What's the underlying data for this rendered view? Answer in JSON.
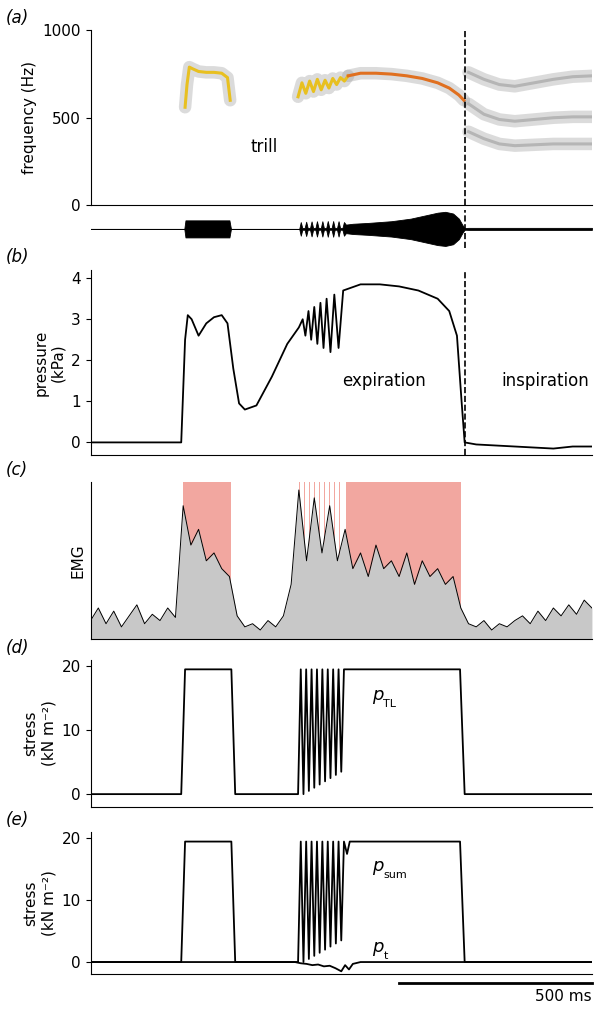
{
  "chart_data": [
    {
      "type": "line",
      "title": "(a)",
      "y_label": "frequency (Hz)",
      "xlim": [
        0,
        1300
      ],
      "xticks": [],
      "ylim": [
        0,
        1000
      ],
      "yticks": [
        0,
        500,
        1000
      ],
      "tick_labels": "y",
      "series": [
        {
          "type": "line",
          "color": "#e8c020",
          "x": [
            245,
            250,
            256,
            265,
            280,
            300,
            320,
            340,
            355,
            362
          ],
          "values": [
            560,
            690,
            790,
            780,
            765,
            760,
            760,
            755,
            730,
            600
          ]
        },
        {
          "type": "line",
          "color": "#e8c020",
          "x": [
            538,
            548,
            558,
            568,
            578,
            588,
            598,
            608,
            618,
            628,
            638,
            648,
            658,
            668
          ],
          "values": [
            620,
            700,
            640,
            710,
            650,
            720,
            660,
            715,
            670,
            725,
            690,
            730,
            710,
            740
          ]
        },
        {
          "type": "line",
          "color": "#e07020",
          "x": [
            668,
            700,
            740,
            780,
            820,
            860,
            900,
            930,
            955,
            968
          ],
          "values": [
            740,
            755,
            755,
            750,
            740,
            725,
            700,
            670,
            630,
            600
          ]
        },
        {
          "type": "line",
          "color": "#b5b5b5",
          "x": [
            980,
            1020,
            1060,
            1100,
            1150,
            1200,
            1250,
            1300
          ],
          "values": [
            760,
            720,
            690,
            680,
            700,
            720,
            735,
            740
          ]
        },
        {
          "type": "line",
          "color": "#b5b5b5",
          "x": [
            980,
            1020,
            1060,
            1100,
            1150,
            1200,
            1250,
            1300
          ],
          "values": [
            580,
            520,
            490,
            480,
            490,
            500,
            505,
            505
          ]
        },
        {
          "type": "line",
          "color": "#b5b5b5",
          "x": [
            980,
            1020,
            1060,
            1100,
            1150,
            1200,
            1250,
            1300
          ],
          "values": [
            420,
            380,
            350,
            340,
            345,
            350,
            350,
            350
          ]
        }
      ],
      "annotations": [
        {
          "text": "trill",
          "x": 450,
          "y": 330
        }
      ],
      "vline": 970
    },
    {
      "type": "area",
      "xlim": [
        0,
        1300
      ],
      "xticks": [],
      "ylim": [
        -1.1,
        1.1
      ],
      "yticks": [],
      "tick_labels": false,
      "series": [
        {
          "type": "envelope",
          "color": "#000000",
          "x": [
            0,
            243,
            246,
            360,
            364,
            541,
            545,
            549,
            555,
            559,
            563,
            569,
            573,
            577,
            583,
            587,
            591,
            597,
            601,
            605,
            611,
            615,
            619,
            625,
            629,
            633,
            639,
            643,
            647,
            653,
            657,
            662,
            680,
            720,
            780,
            830,
            870,
            900,
            920,
            940,
            955,
            965,
            970,
            980,
            1300
          ],
          "values": [
            0,
            0,
            0.5,
            0.5,
            0,
            0,
            0.4,
            0.05,
            0.05,
            0.42,
            0.05,
            0.05,
            0.44,
            0.05,
            0.05,
            0.45,
            0.05,
            0.05,
            0.45,
            0.05,
            0.05,
            0.46,
            0.05,
            0.05,
            0.46,
            0.05,
            0.05,
            0.45,
            0.05,
            0.05,
            0.4,
            0.25,
            0.3,
            0.35,
            0.45,
            0.6,
            0.8,
            0.95,
            1.0,
            0.9,
            0.6,
            0.2,
            0.05,
            0.06,
            0.06
          ]
        }
      ],
      "vline": 970
    },
    {
      "type": "line",
      "title": "(b)",
      "y_label": "pressure\n(kPa)",
      "xlim": [
        0,
        1300
      ],
      "xticks": [],
      "ylim": [
        -0.3,
        4.2
      ],
      "yticks": [
        0,
        1,
        2,
        3,
        4
      ],
      "tick_labels": "y",
      "series": [
        {
          "type": "line",
          "color": "#000000",
          "x": [
            0,
            235,
            245,
            252,
            262,
            280,
            300,
            320,
            340,
            355,
            370,
            385,
            400,
            430,
            470,
            510,
            540,
            550,
            557,
            565,
            572,
            580,
            588,
            596,
            604,
            612,
            622,
            632,
            643,
            655,
            670,
            700,
            750,
            800,
            850,
            900,
            930,
            950,
            962,
            970,
            1000,
            1100,
            1200,
            1250,
            1300
          ],
          "values": [
            0,
            0,
            2.5,
            3.1,
            3.0,
            2.6,
            2.9,
            3.05,
            3.1,
            2.9,
            1.8,
            0.95,
            0.8,
            0.9,
            1.6,
            2.4,
            2.8,
            3.0,
            2.6,
            3.2,
            2.5,
            3.3,
            2.4,
            3.4,
            2.3,
            3.5,
            2.2,
            3.6,
            2.3,
            3.7,
            3.75,
            3.85,
            3.85,
            3.8,
            3.7,
            3.5,
            3.2,
            2.6,
            1.0,
            0.0,
            -0.05,
            -0.1,
            -0.15,
            -0.1,
            -0.1
          ]
        }
      ],
      "annotations": [
        {
          "text": "expiration",
          "x": 760,
          "y": 1.5
        },
        {
          "text": "inspiration",
          "x": 1180,
          "y": 1.5
        }
      ],
      "vline": 970
    },
    {
      "type": "line",
      "title": "(c)",
      "y_label": "EMG",
      "xlim": [
        0,
        1300
      ],
      "xticks": [],
      "ylim": [
        0,
        1
      ],
      "yticks": [],
      "tick_labels": false,
      "series": [
        {
          "type": "span",
          "color": "#f2a7a0",
          "intervals": [
            [
              240,
              365
            ],
            [
              540,
              544
            ],
            [
              553,
              557
            ],
            [
              566,
              570
            ],
            [
              579,
              583
            ],
            [
              592,
              596
            ],
            [
              605,
              609
            ],
            [
              618,
              622
            ],
            [
              631,
              635
            ],
            [
              644,
              648
            ],
            [
              662,
              960
            ]
          ]
        },
        {
          "type": "area",
          "color": "#000000",
          "x": [
            0,
            20,
            40,
            60,
            80,
            100,
            120,
            140,
            160,
            180,
            200,
            220,
            240,
            260,
            280,
            300,
            320,
            340,
            360,
            380,
            400,
            420,
            440,
            460,
            480,
            500,
            520,
            540,
            560,
            580,
            600,
            620,
            640,
            660,
            680,
            700,
            720,
            740,
            760,
            780,
            800,
            820,
            840,
            860,
            880,
            900,
            920,
            940,
            960,
            980,
            1000,
            1020,
            1040,
            1060,
            1080,
            1100,
            1120,
            1140,
            1160,
            1180,
            1200,
            1220,
            1240,
            1260,
            1280,
            1300
          ],
          "values": [
            0.12,
            0.2,
            0.1,
            0.18,
            0.08,
            0.15,
            0.22,
            0.1,
            0.16,
            0.12,
            0.2,
            0.14,
            0.85,
            0.6,
            0.7,
            0.5,
            0.55,
            0.45,
            0.4,
            0.15,
            0.08,
            0.1,
            0.06,
            0.12,
            0.08,
            0.15,
            0.35,
            0.95,
            0.5,
            0.9,
            0.55,
            0.85,
            0.5,
            0.7,
            0.45,
            0.55,
            0.4,
            0.6,
            0.45,
            0.5,
            0.4,
            0.55,
            0.35,
            0.5,
            0.4,
            0.45,
            0.35,
            0.4,
            0.2,
            0.1,
            0.08,
            0.12,
            0.06,
            0.1,
            0.08,
            0.12,
            0.15,
            0.1,
            0.18,
            0.12,
            0.2,
            0.15,
            0.22,
            0.16,
            0.25,
            0.2
          ]
        }
      ]
    },
    {
      "type": "line",
      "title": "(d)",
      "y_label": "stress\n(kN m⁻²)",
      "xlim": [
        0,
        1300
      ],
      "xticks": [],
      "ylim": [
        -2,
        21
      ],
      "yticks": [
        0,
        10,
        20
      ],
      "tick_labels": "y",
      "series": [
        {
          "type": "line",
          "color": "#000000",
          "x": [
            0,
            235,
            245,
            365,
            375,
            538,
            545,
            552,
            559,
            566,
            573,
            580,
            587,
            594,
            601,
            608,
            615,
            622,
            629,
            636,
            643,
            650,
            657,
            665,
            958,
            970,
            1300
          ],
          "values": [
            0,
            0,
            19.5,
            19.5,
            0,
            0,
            19.5,
            0,
            19.5,
            0.5,
            19.5,
            1,
            19.5,
            1.5,
            19.5,
            2,
            19.5,
            2.5,
            19.5,
            3,
            19.5,
            3.5,
            19.5,
            19.5,
            19.5,
            0,
            0
          ]
        }
      ],
      "annotations": [
        {
          "text": "p",
          "subscript": "TL",
          "x": 730,
          "y": 15.5
        }
      ]
    },
    {
      "type": "line",
      "title": "(e)",
      "y_label": "stress\n(kN m⁻²)",
      "xlim": [
        0,
        1300
      ],
      "xticks": [],
      "ylim": [
        -2,
        21
      ],
      "yticks": [
        0,
        10,
        20
      ],
      "tick_labels": "y",
      "series": [
        {
          "type": "line",
          "color": "#000000",
          "x": [
            0,
            235,
            245,
            365,
            375,
            538,
            545,
            552,
            559,
            566,
            573,
            580,
            587,
            594,
            601,
            608,
            615,
            622,
            629,
            636,
            643,
            650,
            657,
            665,
            672,
            958,
            970,
            1300
          ],
          "values": [
            0,
            0,
            19.5,
            19.5,
            0,
            0,
            19.5,
            0,
            19.5,
            0.5,
            19.5,
            1,
            19.5,
            1.5,
            19.5,
            2,
            19.5,
            2.5,
            19.5,
            3,
            19.5,
            3.5,
            19.5,
            17.5,
            19.5,
            19.5,
            0,
            0
          ]
        },
        {
          "type": "line",
          "color": "#000000",
          "x": [
            0,
            530,
            545,
            560,
            575,
            590,
            605,
            620,
            635,
            650,
            660,
            670,
            680,
            700,
            1300
          ],
          "values": [
            0,
            0,
            -0.2,
            -0.3,
            -0.5,
            -0.4,
            -0.7,
            -0.6,
            -1.0,
            -1.5,
            -0.5,
            -1.2,
            -0.3,
            0,
            0
          ]
        }
      ],
      "annotations": [
        {
          "text": "p",
          "subscript": "sum",
          "x": 730,
          "y": 15.5
        },
        {
          "text": "p",
          "subscript": "t",
          "x": 730,
          "y": 2.5
        }
      ],
      "scale_bar": {
        "value": 500,
        "label": "500 ms"
      }
    }
  ]
}
